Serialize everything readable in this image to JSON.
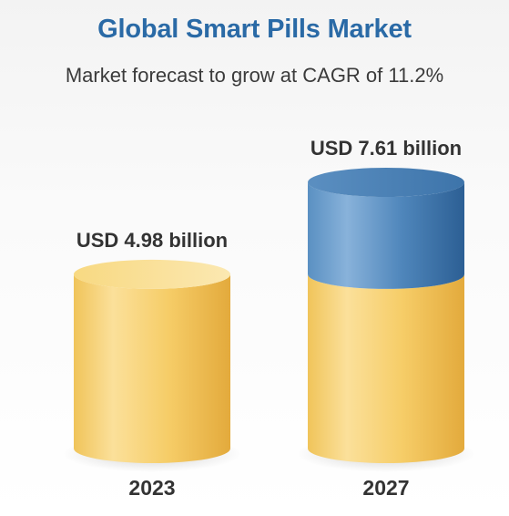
{
  "header": {
    "title": "Global Smart Pills Market",
    "subtitle": "Market forecast to grow at CAGR of 11.2%"
  },
  "colors": {
    "gold": "#f5c961",
    "gold_dark": "#e4ad40",
    "gold_light": "#fbe3a2",
    "blue": "#4d86bb",
    "blue_dark": "#2f649a",
    "blue_light": "#78a6d1",
    "text_dark": "#333333"
  },
  "chart_data": {
    "type": "bar",
    "style": "3d-cylinder",
    "title": "Global Smart Pills Market",
    "subtitle": "Market forecast to grow at CAGR of 11.2%",
    "categories": [
      "2023",
      "2027"
    ],
    "values": [
      4.98,
      7.61
    ],
    "unit": "USD billion",
    "data_labels": [
      "USD 4.98 billion",
      "USD 7.61 billion"
    ],
    "xlabel": "",
    "ylabel": "",
    "ylim": [
      0,
      7.61
    ],
    "grid": false,
    "legend": "none"
  }
}
